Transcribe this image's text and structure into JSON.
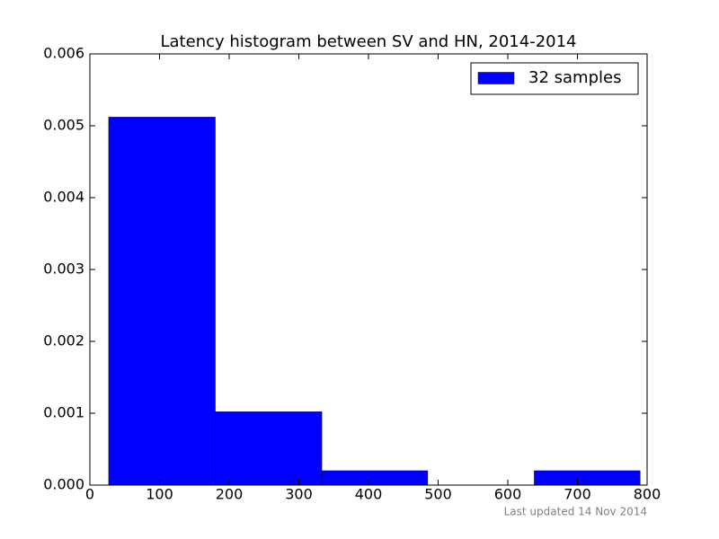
{
  "chart_data": {
    "type": "histogram",
    "title": "Latency histogram between SV and HN, 2014-2014",
    "bins": [
      27,
      180,
      333,
      485,
      638,
      790
    ],
    "series": [
      {
        "name": "32 samples",
        "color": "#0000ff",
        "values": [
          0.00512,
          0.00102,
          0.0002,
          0,
          0.0002
        ]
      }
    ],
    "xlim": [
      0,
      800
    ],
    "xticks": [
      0,
      100,
      200,
      300,
      400,
      500,
      600,
      700,
      800
    ],
    "ylim": [
      0,
      0.006
    ],
    "yticks": [
      {
        "value": 0,
        "label": "0.000"
      },
      {
        "value": 0.001,
        "label": "0.001"
      },
      {
        "value": 0.002,
        "label": "0.002"
      },
      {
        "value": 0.003,
        "label": "0.003"
      },
      {
        "value": 0.004,
        "label": "0.004"
      },
      {
        "value": 0.005,
        "label": "0.005"
      },
      {
        "value": 0.006,
        "label": "0.006"
      }
    ],
    "grid": false,
    "legend": "upper right",
    "footer": "Last updated 14 Nov 2014"
  }
}
